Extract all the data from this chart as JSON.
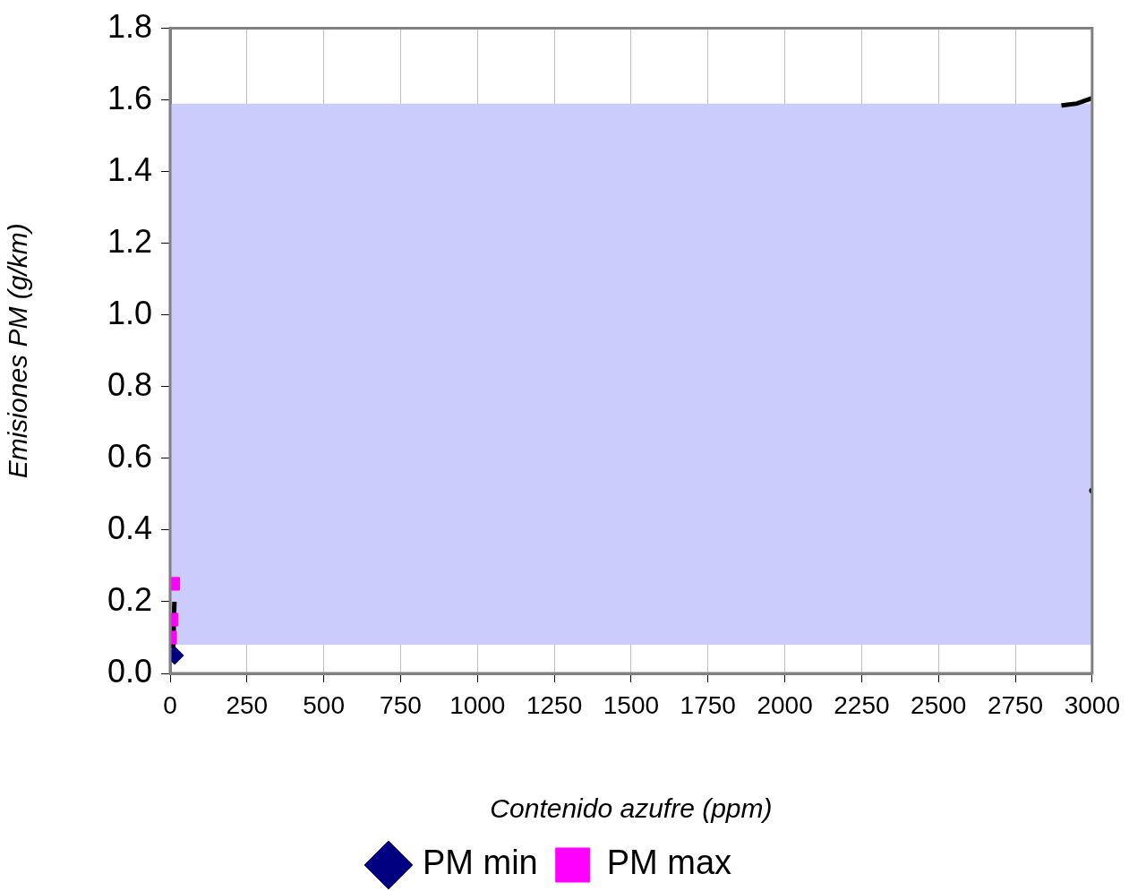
{
  "chart_data": {
    "type": "scatter",
    "xlabel": "Contenido azufre (ppm)",
    "ylabel": "Emisiones PM (g/km)",
    "xlim": [
      0,
      3000
    ],
    "xticks": [
      0,
      250,
      500,
      750,
      1000,
      1250,
      1500,
      1750,
      2000,
      2250,
      2500,
      2750,
      3000
    ],
    "ylim": [
      0,
      1.8
    ],
    "yticks": [
      {
        "value": 0,
        "label": "0.0"
      },
      {
        "value": 0.2,
        "label": "0.2"
      },
      {
        "value": 0.4,
        "label": "0.4"
      },
      {
        "value": 0.6,
        "label": "0.6"
      },
      {
        "value": 0.8,
        "label": "0.8"
      },
      {
        "value": 1,
        "label": "1.0"
      },
      {
        "value": 1.2,
        "label": "1.2"
      },
      {
        "value": 1.4,
        "label": "1.4"
      },
      {
        "value": 1.6,
        "label": "1.6"
      },
      {
        "value": 1.8,
        "label": "1.8"
      }
    ],
    "grid": "x",
    "legend": "bottom",
    "bands": [
      {
        "axis": "y",
        "from": 0.08,
        "to": 1.59,
        "color": "#ccccfc"
      }
    ],
    "series": [
      {
        "name": "PM min",
        "color": "#000080",
        "marker": "diamond",
        "x": [
          15
        ],
        "values": [
          0.05
        ]
      },
      {
        "name": "PM max",
        "color": "#ff00ff",
        "marker": "square",
        "x": [
          0,
          5,
          10
        ],
        "values": [
          0.1,
          0.15,
          0.25
        ]
      },
      {
        "type": "line",
        "color": "#000000",
        "marker": "none",
        "x": [
          10,
          14
        ],
        "values": [
          0.07,
          0.2
        ]
      },
      {
        "type": "line",
        "color": "#000000",
        "marker": "none",
        "x": [
          2900,
          2950,
          3000
        ],
        "values": [
          1.585,
          1.59,
          1.605
        ]
      },
      {
        "color": "#000000",
        "marker": "circle",
        "x": [
          3000
        ],
        "values": [
          0.51
        ]
      }
    ]
  }
}
